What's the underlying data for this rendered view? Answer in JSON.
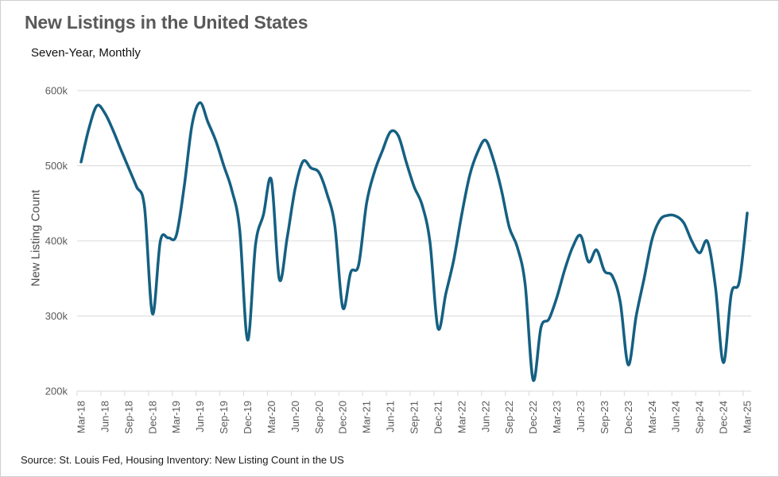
{
  "chart": {
    "title": "New Listings in the United States",
    "subtitle": "Seven-Year, Monthly",
    "ylabel": "New Listing Count",
    "source": "Source: St. Louis Fed, Housing Inventory: New Listing Count in the US"
  },
  "chart_data": {
    "type": "line",
    "title": "New Listings in the United States",
    "subtitle": "Seven-Year, Monthly",
    "xlabel": "",
    "ylabel": "New Listing Count",
    "x_range": "Mar-2018 to Mar-2025, monthly (85 points)",
    "unit": "thousands of listings",
    "x_tick_labels": [
      "Mar-18",
      "Jun-18",
      "Sep-18",
      "Dec-18",
      "Mar-19",
      "Jun-19",
      "Sep-19",
      "Dec-19",
      "Mar-20",
      "Jun-20",
      "Sep-20",
      "Dec-20",
      "Mar-21",
      "Jun-21",
      "Sep-21",
      "Dec-21",
      "Mar-22",
      "Jun-22",
      "Sep-22",
      "Dec-22",
      "Mar-23",
      "Jun-23",
      "Sep-23",
      "Dec-23",
      "Mar-24",
      "Jun-24",
      "Sep-24",
      "Dec-24",
      "Mar-25"
    ],
    "x_tick_every_n_months": 3,
    "values": [
      505,
      550,
      580,
      570,
      548,
      522,
      497,
      472,
      445,
      303,
      400,
      404,
      407,
      472,
      555,
      584,
      558,
      533,
      500,
      468,
      415,
      268,
      395,
      435,
      481,
      349,
      405,
      470,
      506,
      497,
      491,
      463,
      420,
      311,
      358,
      368,
      450,
      492,
      520,
      545,
      540,
      505,
      472,
      448,
      398,
      284,
      330,
      375,
      435,
      487,
      518,
      534,
      508,
      468,
      418,
      392,
      342,
      215,
      285,
      296,
      325,
      362,
      392,
      407,
      372,
      388,
      360,
      353,
      318,
      235,
      300,
      350,
      402,
      428,
      434,
      433,
      424,
      400,
      384,
      399,
      338,
      238,
      330,
      346,
      437
    ],
    "y_ticks": [
      200,
      300,
      400,
      500,
      600
    ],
    "y_tick_labels": [
      "200k",
      "300k",
      "400k",
      "500k",
      "600k"
    ],
    "ylim": [
      200,
      600
    ],
    "grid": "horizontal",
    "legend": "none",
    "smoothed": true,
    "line_color": "#156082",
    "gridline_color": "#d9d9d9",
    "tick_text_color": "#595959",
    "title_color": "#595959",
    "source": "Source: St. Louis Fed, Housing Inventory: New Listing Count in the US"
  }
}
